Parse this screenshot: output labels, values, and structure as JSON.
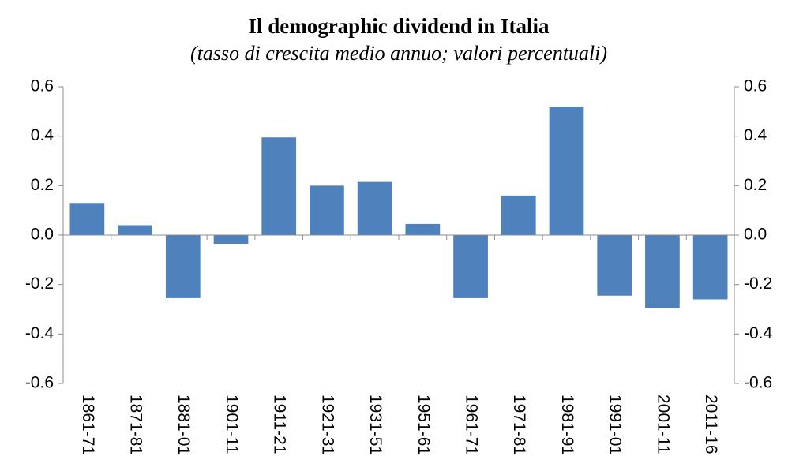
{
  "chart_data": {
    "type": "bar",
    "title": "Il demographic dividend in Italia",
    "subtitle": "(tasso di crescita medio annuo; valori percentuali)",
    "categories": [
      "1861-71",
      "1871-81",
      "1881-01",
      "1901-11",
      "1911-21",
      "1921-31",
      "1931-51",
      "1951-61",
      "1961-71",
      "1971-81",
      "1981-91",
      "1991-01",
      "2001-11",
      "2011-16"
    ],
    "values": [
      0.13,
      0.04,
      -0.255,
      -0.035,
      0.395,
      0.2,
      0.215,
      0.045,
      -0.255,
      0.16,
      0.52,
      -0.245,
      -0.295,
      -0.26
    ],
    "color": "#4f81bd",
    "ylim": [
      -0.6,
      0.6
    ],
    "yticks": [
      -0.6,
      -0.4,
      -0.2,
      {
        "value": 0,
        "label": "0.0"
      },
      0.2,
      0.4,
      0.6
    ],
    "y2lim": [
      -0.6,
      0.6
    ],
    "y2ticks": [
      -0.6,
      -0.4,
      -0.2,
      {
        "value": 0,
        "label": "0.0"
      },
      0.2,
      0.4,
      0.6
    ],
    "grid": false
  }
}
